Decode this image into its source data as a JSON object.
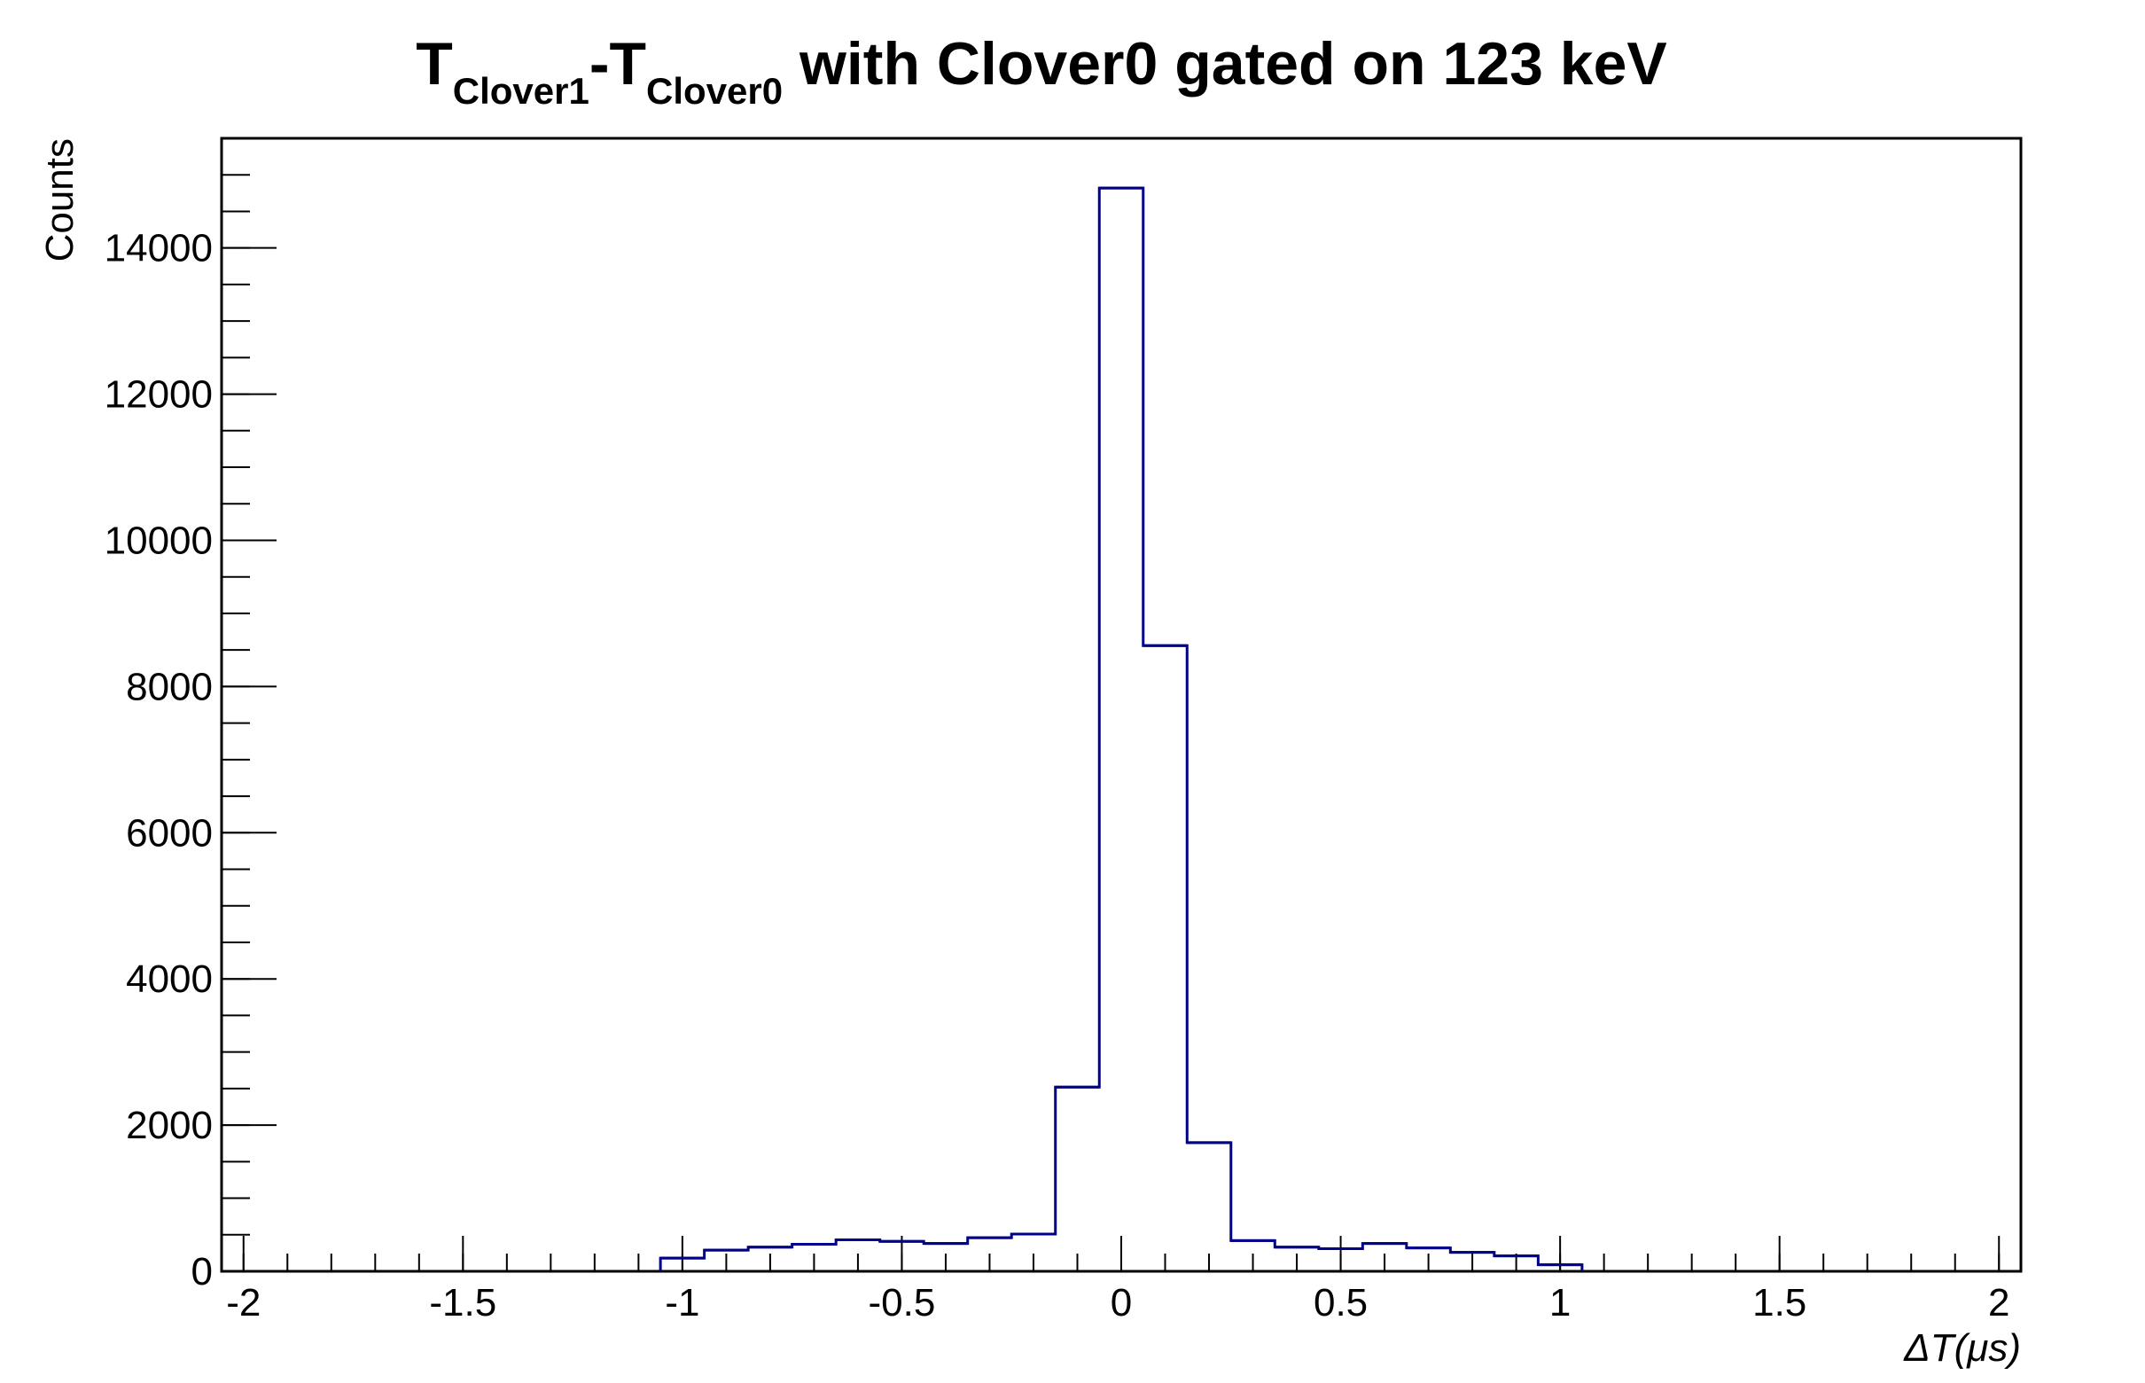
{
  "chart_data": {
    "type": "bar",
    "style": "step-histogram",
    "title": {
      "t1": "T",
      "sub1": "Clover1",
      "dash": "-",
      "t2": "T",
      "sub2": "Clover0",
      "rest": " with Clover0 gated on 123 keV"
    },
    "xlabel": "ΔT(μs)",
    "ylabel": "Counts",
    "xlim": [
      -2.05,
      2.05
    ],
    "ylim": [
      0,
      15500
    ],
    "x_ticks": [
      {
        "value": -2,
        "label": "-2"
      },
      {
        "value": -1.5,
        "label": "-1.5"
      },
      {
        "value": -1,
        "label": "-1"
      },
      {
        "value": -0.5,
        "label": "-0.5"
      },
      {
        "value": 0,
        "label": "0"
      },
      {
        "value": 0.5,
        "label": "0.5"
      },
      {
        "value": 1,
        "label": "1"
      },
      {
        "value": 1.5,
        "label": "1.5"
      },
      {
        "value": 2,
        "label": "2"
      }
    ],
    "y_ticks": [
      {
        "value": 0,
        "label": "0"
      },
      {
        "value": 2000,
        "label": "2000"
      },
      {
        "value": 4000,
        "label": "4000"
      },
      {
        "value": 6000,
        "label": "6000"
      },
      {
        "value": 8000,
        "label": "8000"
      },
      {
        "value": 10000,
        "label": "10000"
      },
      {
        "value": 12000,
        "label": "12000"
      },
      {
        "value": 14000,
        "label": "14000"
      }
    ],
    "x_minor_step": 0.1,
    "y_minor_step": 500,
    "bin_width": 0.1,
    "bin_low_edges": [
      -1.05,
      -0.95,
      -0.85,
      -0.75,
      -0.65,
      -0.55,
      -0.45,
      -0.35,
      -0.25,
      -0.15,
      -0.05,
      0.05,
      0.15,
      0.25,
      0.35,
      0.45,
      0.55,
      0.65,
      0.75,
      0.85,
      0.95
    ],
    "values": [
      180,
      290,
      330,
      370,
      430,
      410,
      380,
      460,
      510,
      2520,
      14820,
      8560,
      1760,
      420,
      330,
      310,
      380,
      320,
      260,
      210,
      90
    ],
    "line_color": "#00008b",
    "axis_color": "#000000",
    "grid": false,
    "legend": "none"
  }
}
